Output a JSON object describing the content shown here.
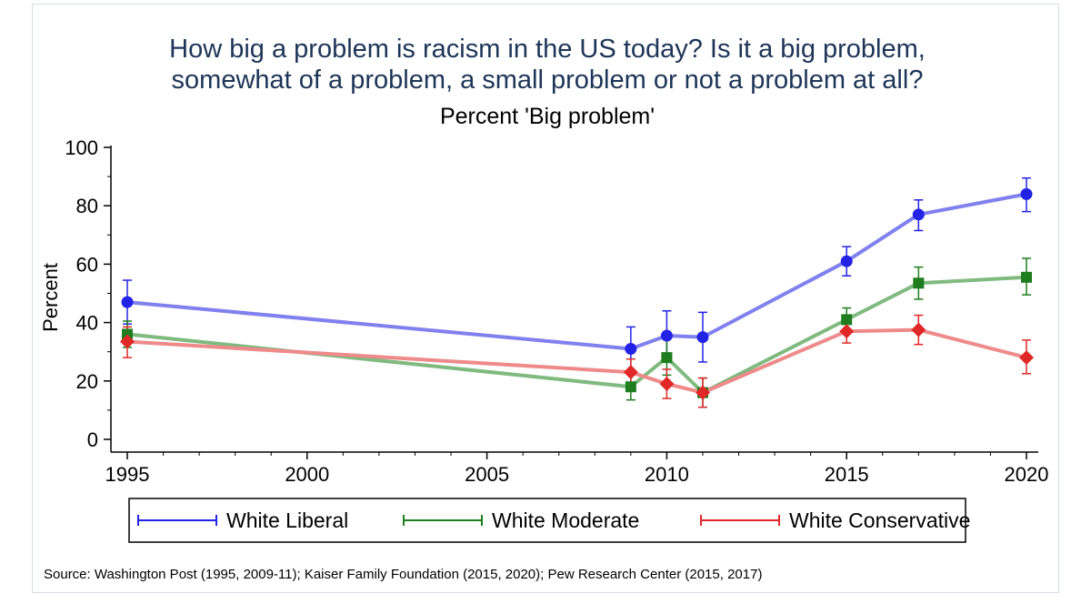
{
  "chart_data": {
    "type": "line",
    "title": "How big a problem is racism in the US today? Is it a big problem, somewhat of a problem, a small problem or not a problem at all?",
    "title_lines": [
      "How big a problem is racism in the US today? Is it a big problem,",
      "somewhat of a problem, a small problem or not a problem at all?"
    ],
    "subtitle": "Percent 'Big problem'",
    "xlabel": "",
    "ylabel": "Percent",
    "xlim": [
      1995,
      2020
    ],
    "ylim": [
      0,
      100
    ],
    "xticks": [
      1995,
      2000,
      2005,
      2010,
      2015,
      2020
    ],
    "yticks": [
      0,
      20,
      40,
      60,
      80,
      100
    ],
    "grid": false,
    "legend_position": "bottom",
    "series": [
      {
        "name": "White Liberal",
        "color": "#2323e6",
        "line_color": "#8080ee",
        "marker": "circle",
        "x": [
          1995,
          2009,
          2010,
          2011,
          2015,
          2017,
          2020
        ],
        "values": [
          47,
          31,
          35.5,
          35,
          61,
          77,
          84
        ],
        "ci_low": [
          39.5,
          23.5,
          27,
          26.5,
          56,
          71.5,
          78
        ],
        "ci_high": [
          54.5,
          38.5,
          44,
          43.5,
          66,
          82,
          89.5
        ]
      },
      {
        "name": "White Moderate",
        "color": "#1e7d1e",
        "line_color": "#7fba7f",
        "marker": "square",
        "x": [
          1995,
          2009,
          2010,
          2011,
          2015,
          2017,
          2020
        ],
        "values": [
          36,
          18,
          28,
          16,
          41,
          53.5,
          55.5
        ],
        "ci_low": [
          31.5,
          13.5,
          22,
          11,
          37,
          48,
          49.5
        ],
        "ci_high": [
          40.5,
          22.5,
          34.5,
          21,
          45,
          59,
          62
        ]
      },
      {
        "name": "White Conservative",
        "color": "#e02828",
        "line_color": "#ee8a8a",
        "marker": "diamond",
        "x": [
          1995,
          2009,
          2010,
          2011,
          2015,
          2017,
          2020
        ],
        "values": [
          33.5,
          23,
          19,
          16,
          37,
          37.5,
          28
        ],
        "ci_low": [
          28,
          18.5,
          14,
          11,
          33,
          32.5,
          22.5
        ],
        "ci_high": [
          38.5,
          27.5,
          24,
          21,
          41,
          42.5,
          34
        ]
      }
    ],
    "source": "Source: Washington Post (1995, 2009-11); Kaiser Family Foundation (2015, 2020); Pew Research Center (2015, 2017)"
  }
}
